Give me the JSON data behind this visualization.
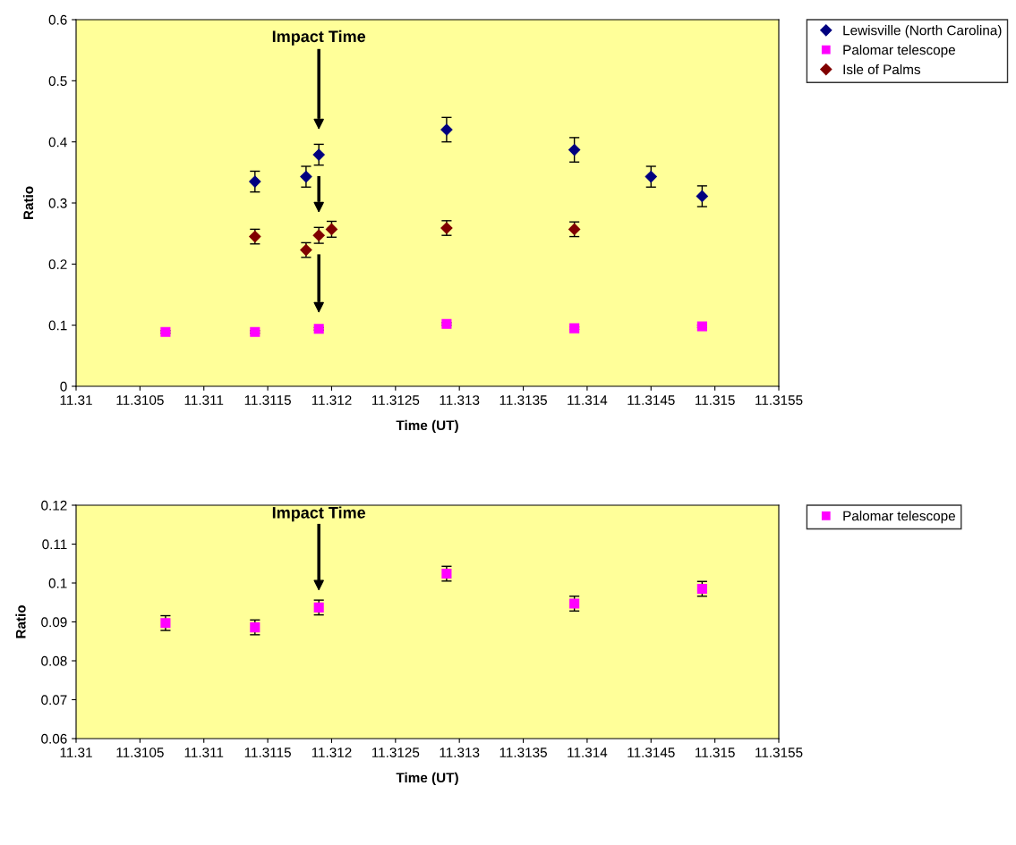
{
  "chart_data": [
    {
      "type": "scatter",
      "xlabel": "Time (UT)",
      "ylabel": "Ratio",
      "xlim": [
        11.31,
        11.3155
      ],
      "xticks": [
        11.31,
        11.3105,
        11.311,
        11.3115,
        11.312,
        11.3125,
        11.313,
        11.3135,
        11.314,
        11.3145,
        11.315,
        11.3155
      ],
      "ylim": [
        0,
        0.6
      ],
      "yticks": [
        0,
        0.1,
        0.2,
        0.3,
        0.4,
        0.5,
        0.6
      ],
      "grid": false,
      "legend": "right",
      "series": [
        {
          "name": "Lewisville (North Carolina)",
          "color": "#000080",
          "marker": "diamond",
          "x": [
            11.3114,
            11.3118,
            11.3119,
            11.3129,
            11.3139,
            11.3145,
            11.3149
          ],
          "values": [
            0.335,
            0.343,
            0.379,
            0.42,
            0.387,
            0.343,
            0.311
          ],
          "errors": [
            0.017,
            0.017,
            0.017,
            0.02,
            0.02,
            0.017,
            0.017
          ]
        },
        {
          "name": "Palomar telescope",
          "color": "#ff00ff",
          "marker": "square",
          "x": [
            11.3107,
            11.3114,
            11.3119,
            11.3129,
            11.3139,
            11.3149
          ],
          "values": [
            0.089,
            0.089,
            0.094,
            0.102,
            0.095,
            0.098
          ],
          "errors": [
            0.002,
            0.002,
            0.002,
            0.002,
            0.002,
            0.002
          ]
        },
        {
          "name": "Isle of Palms",
          "color": "#800000",
          "marker": "diamond",
          "x": [
            11.3114,
            11.3118,
            11.3119,
            11.312,
            11.3129,
            11.3139
          ],
          "values": [
            0.245,
            0.223,
            0.247,
            0.257,
            0.259,
            0.257
          ],
          "errors": [
            0.012,
            0.012,
            0.013,
            0.013,
            0.012,
            0.012
          ]
        }
      ],
      "ref_lines": [
        {
          "axis": "x",
          "value": 11.3119,
          "label": "Impact Time",
          "color": "#000000"
        }
      ]
    },
    {
      "type": "scatter",
      "xlabel": "Time (UT)",
      "ylabel": "Ratio",
      "xlim": [
        11.31,
        11.3155
      ],
      "xticks": [
        11.31,
        11.3105,
        11.311,
        11.3115,
        11.312,
        11.3125,
        11.313,
        11.3135,
        11.314,
        11.3145,
        11.315,
        11.3155
      ],
      "ylim": [
        0.06,
        0.12
      ],
      "yticks": [
        0.06,
        0.07,
        0.08,
        0.09,
        0.1,
        0.11,
        0.12
      ],
      "grid": false,
      "legend": "right",
      "series": [
        {
          "name": "Palomar telescope",
          "color": "#ff00ff",
          "marker": "square",
          "x": [
            11.3107,
            11.3114,
            11.3119,
            11.3129,
            11.3139,
            11.3149
          ],
          "values": [
            0.0897,
            0.0886,
            0.0937,
            0.1024,
            0.0947,
            0.0985
          ],
          "errors": [
            0.0019,
            0.0019,
            0.0019,
            0.0019,
            0.0019,
            0.0019
          ]
        }
      ],
      "ref_lines": [
        {
          "axis": "x",
          "value": 11.3119,
          "label": "Impact Time",
          "color": "#000000"
        }
      ]
    }
  ]
}
